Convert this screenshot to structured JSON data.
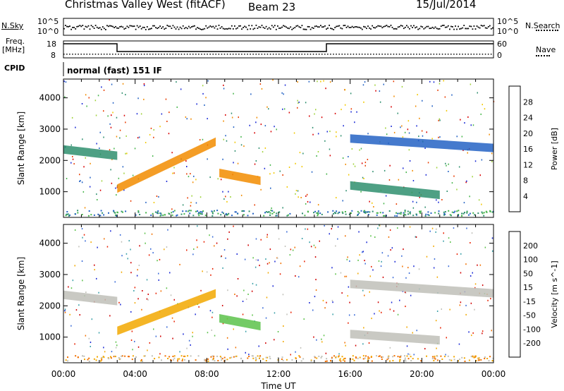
{
  "header": {
    "title": "Christmas Valley West (fitACF)",
    "beam": "Beam 23",
    "date": "15/Jul/2014"
  },
  "status_panels": {
    "nsky_label": "N.Sky",
    "nsky_ticks": [
      "10^5",
      "10^0"
    ],
    "nsearch_label": "N.Search",
    "nsearch_ticks": [
      "10^5",
      "10^0"
    ],
    "freq_label_line1": "Freq.",
    "freq_label_line2": "[MHz]",
    "freq_ticks": [
      "18",
      "8"
    ],
    "nave_label": "Nave",
    "nave_ticks": [
      "60",
      "0"
    ],
    "cpid_label": "CPID",
    "cpid_text": "normal (fast) 151 IF"
  },
  "chart_data": [
    {
      "type": "heatmap",
      "name": "power",
      "ylabel": "Slant Range [km]",
      "yticks": [
        1000,
        2000,
        3000,
        4000
      ],
      "ylim": [
        180,
        4600
      ],
      "colorbar_label": "Power [dB]",
      "colorbar_ticks": [
        "4",
        "8",
        "12",
        "16",
        "20",
        "24",
        "28"
      ],
      "colorbar_colors": [
        "#1c2bd6",
        "#2563c4",
        "#2f8f6e",
        "#45b54a",
        "#9fd23a",
        "#f2c800",
        "#f28c00",
        "#e83c00",
        "#d80000"
      ],
      "features": [
        {
          "t": [
            0.0,
            3.0
          ],
          "r_start": 2350,
          "r_end": 2150,
          "color": "#2f8f6e"
        },
        {
          "t": [
            3.0,
            8.5
          ],
          "r_start": 1100,
          "r_end": 2600,
          "color": "#f28c00"
        },
        {
          "t": [
            8.7,
            11.0
          ],
          "r_start": 1600,
          "r_end": 1350,
          "color": "#f28c00"
        },
        {
          "t": [
            16.0,
            24.0
          ],
          "r_start": 2700,
          "r_end": 2400,
          "color": "#2563c4"
        },
        {
          "t": [
            16.0,
            21.0
          ],
          "r_start": 1200,
          "r_end": 900,
          "color": "#2f8f6e"
        }
      ]
    },
    {
      "type": "heatmap",
      "name": "velocity",
      "xlabel": "Time UT",
      "ylabel": "Slant Range [km]",
      "xticks": [
        "00:00",
        "04:00",
        "08:00",
        "12:00",
        "16:00",
        "20:00",
        "00:00"
      ],
      "xlim": [
        0,
        24
      ],
      "yticks": [
        1000,
        2000,
        3000,
        4000
      ],
      "ylim": [
        180,
        4600
      ],
      "colorbar_label": "Velocity [m s^-1]",
      "colorbar_ticks": [
        "200",
        "100",
        "50",
        "15",
        "-15",
        "-50",
        "-100",
        "-200"
      ],
      "colorbar_colors": [
        "#1c2bd6",
        "#3a6bd8",
        "#3aa0a8",
        "#5cc24a",
        "#c0c0b8",
        "#f2a800",
        "#f27000",
        "#e82000",
        "#d00000"
      ],
      "features": [
        {
          "t": [
            0.0,
            3.0
          ],
          "r_start": 2350,
          "r_end": 2150,
          "color": "#c0c0b8"
        },
        {
          "t": [
            3.0,
            8.5
          ],
          "r_start": 1200,
          "r_end": 2400,
          "color": "#f2a800"
        },
        {
          "t": [
            8.7,
            11.0
          ],
          "r_start": 1600,
          "r_end": 1350,
          "color": "#5cc24a"
        },
        {
          "t": [
            16.0,
            24.0
          ],
          "r_start": 2700,
          "r_end": 2400,
          "color": "#c0c0b8"
        },
        {
          "t": [
            16.0,
            21.0
          ],
          "r_start": 1100,
          "r_end": 900,
          "color": "#c0c0b8"
        }
      ]
    }
  ]
}
